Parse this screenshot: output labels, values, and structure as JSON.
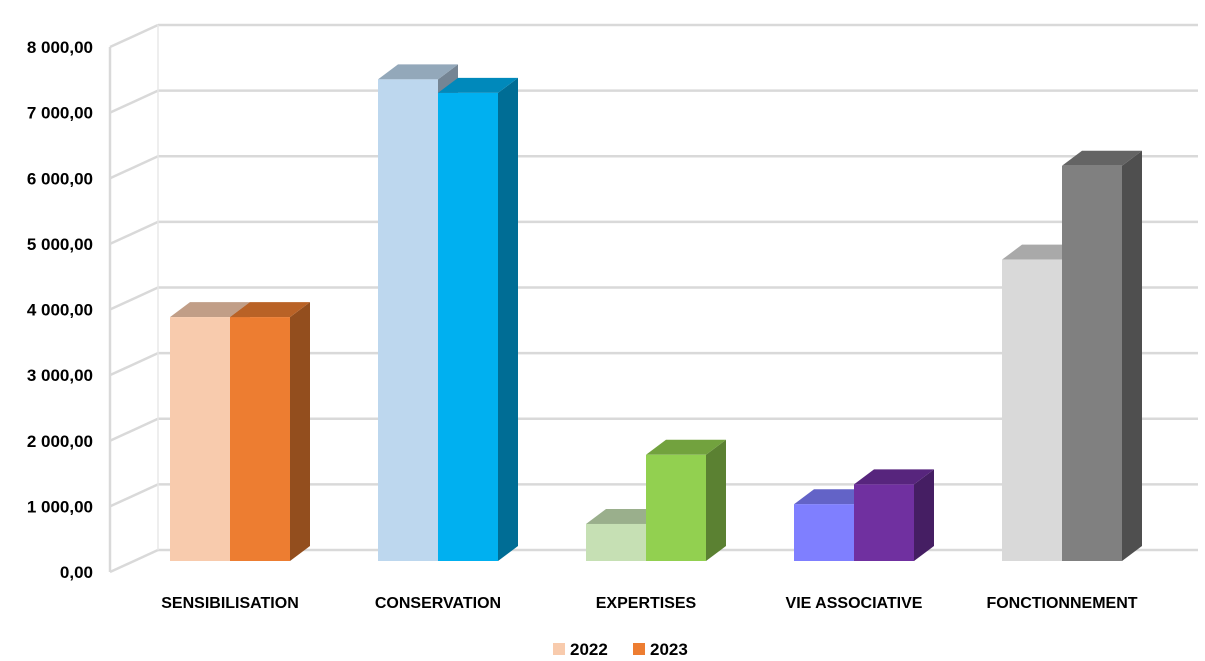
{
  "chart_data": {
    "type": "bar",
    "style": "3d-clustered-column",
    "categories": [
      "SENSIBILISATION",
      "CONSERVATION",
      "EXPERTISES",
      "VIE ASSOCIATIVE",
      "FONCTIONNEMENT"
    ],
    "series": [
      {
        "name": "2022",
        "values": [
          3950,
          7800,
          600,
          920,
          4880
        ]
      },
      {
        "name": "2023",
        "values": [
          3950,
          7580,
          1720,
          1240,
          6400
        ]
      }
    ],
    "ylim": [
      0,
      8000
    ],
    "yticks": [
      "0,00",
      "1 000,00",
      "2 000,00",
      "3 000,00",
      "4 000,00",
      "5 000,00",
      "6 000,00",
      "7 000,00",
      "8 000,00"
    ],
    "grid": true,
    "legend": "bottom",
    "colors": {
      "SENSIBILISATION": [
        "#f8cbad",
        "#ed7d31"
      ],
      "CONSERVATION": [
        "#bdd7ee",
        "#00b0f0"
      ],
      "EXPERTISES": [
        "#c6e0b4",
        "#92d050"
      ],
      "VIE ASSOCIATIVE": [
        "#7f7fff",
        "#7030a0"
      ],
      "FONCTIONNEMENT": [
        "#d9d9d9",
        "#808080"
      ]
    },
    "legend_colors": [
      "#f8cbad",
      "#ed7d31"
    ]
  }
}
